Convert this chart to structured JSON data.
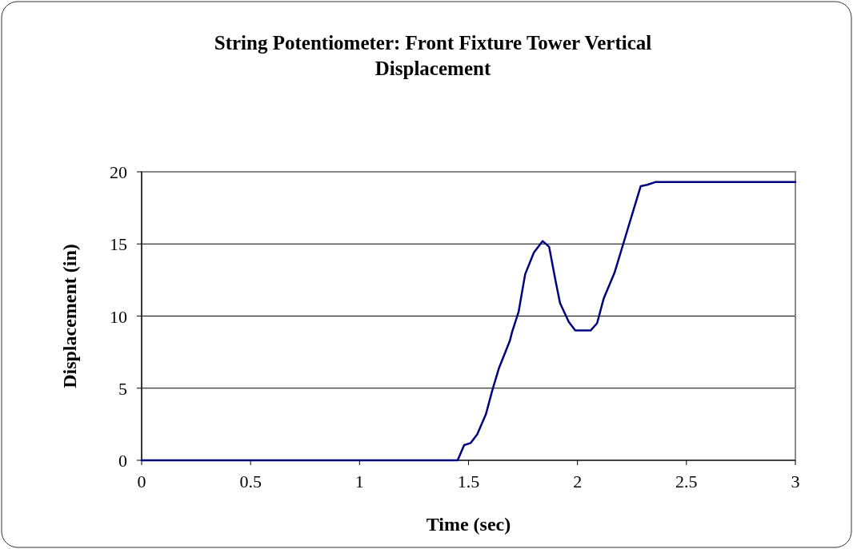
{
  "chart_data": {
    "type": "line",
    "title": "String Potentiometer: Front Fixture Tower Vertical Displacement",
    "xlabel": "Time (sec)",
    "ylabel": "Displacement (in)",
    "x": [
      0,
      1.45,
      1.48,
      1.51,
      1.54,
      1.58,
      1.61,
      1.64,
      1.69,
      1.7,
      1.73,
      1.76,
      1.8,
      1.84,
      1.87,
      1.9,
      1.92,
      1.96,
      1.99,
      2.06,
      2.09,
      2.12,
      2.17,
      2.21,
      2.25,
      2.29,
      2.32,
      2.36,
      3
    ],
    "series": [
      {
        "color": "#000080",
        "values": [
          0,
          0,
          1.05,
          1.2,
          1.8,
          3.2,
          4.9,
          6.4,
          8.3,
          8.9,
          10.3,
          12.9,
          14.4,
          15.2,
          14.8,
          12.4,
          10.9,
          9.6,
          9,
          9,
          9.5,
          11.2,
          13,
          15,
          17,
          19,
          19.1,
          19.3,
          19.3
        ]
      }
    ],
    "xlim": [
      0,
      3
    ],
    "xticks": [
      0,
      0.5,
      1,
      1.5,
      2,
      2.5,
      3
    ],
    "ylim": [
      0,
      20
    ],
    "yticks": [
      0,
      5,
      10,
      15,
      20
    ],
    "grid": "y",
    "marker": "none",
    "line_style": "solid"
  }
}
